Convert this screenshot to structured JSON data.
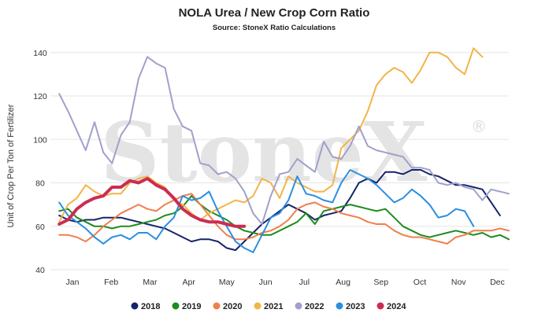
{
  "chart_data": {
    "type": "line",
    "title": "NOLA Urea / New Crop Corn Ratio",
    "subtitle": "Source: StoneX Ratio Calculations",
    "watermark": "StoneX",
    "watermark_mark": "®",
    "xlabel": "",
    "ylabel": "Unit of Crop Per Ton of Fertilizer",
    "ylim": [
      40,
      145
    ],
    "yticks": [
      40,
      60,
      80,
      100,
      120,
      140
    ],
    "xlim": [
      0,
      52
    ],
    "month_ticks": [
      {
        "label": "Jan",
        "week": 2.5
      },
      {
        "label": "Feb",
        "week": 6.9
      },
      {
        "label": "Mar",
        "week": 11.3
      },
      {
        "label": "Apr",
        "week": 15.7
      },
      {
        "label": "May",
        "week": 20.0
      },
      {
        "label": "Jun",
        "week": 24.4
      },
      {
        "label": "Jul",
        "week": 28.8
      },
      {
        "label": "Aug",
        "week": 33.2
      },
      {
        "label": "Sep",
        "week": 37.5
      },
      {
        "label": "Oct",
        "week": 41.9
      },
      {
        "label": "Nov",
        "week": 46.3
      },
      {
        "label": "Dec",
        "week": 50.7
      }
    ],
    "grid": "horizontal",
    "legend": "bottom",
    "series": [
      {
        "name": "2018",
        "color": "#14246b",
        "width": 2,
        "values": [
          65,
          63,
          62,
          63,
          63,
          64,
          64,
          64,
          63,
          62,
          61,
          60,
          59,
          57,
          55,
          53,
          54,
          54,
          53,
          50,
          49,
          53,
          57,
          61,
          64,
          67,
          70,
          68,
          66,
          63,
          65,
          66,
          67,
          73,
          80,
          82,
          80,
          85,
          85,
          84,
          86,
          86,
          84,
          83,
          81,
          79,
          79,
          78,
          77,
          71,
          65
        ]
      },
      {
        "name": "2019",
        "color": "#1e8c1e",
        "width": 2,
        "values": [
          67,
          68,
          64,
          62,
          60,
          60,
          59,
          60,
          60,
          61,
          62,
          63,
          65,
          66,
          69,
          74,
          70,
          67,
          65,
          63,
          60,
          58,
          57,
          56,
          56,
          58,
          60,
          62,
          66,
          61,
          67,
          68,
          69,
          70,
          69,
          68,
          67,
          68,
          64,
          60,
          58,
          56,
          55,
          56,
          57,
          58,
          57,
          56,
          57,
          55,
          56,
          54
        ]
      },
      {
        "name": "2020",
        "color": "#ef7f4d",
        "width": 2,
        "values": [
          56,
          56,
          55,
          53,
          56,
          60,
          63,
          66,
          68,
          70,
          68,
          67,
          70,
          72,
          74,
          75,
          70,
          65,
          60,
          56,
          54,
          54,
          55,
          57,
          58,
          60,
          63,
          68,
          70,
          71,
          69,
          68,
          66,
          65,
          64,
          62,
          61,
          61,
          58,
          56,
          55,
          55,
          54,
          53,
          52,
          55,
          56,
          58,
          58,
          58,
          59,
          58
        ]
      },
      {
        "name": "2021",
        "color": "#f2b446",
        "width": 2,
        "values": [
          62,
          70,
          73,
          79,
          76,
          74,
          75,
          75,
          80,
          82,
          83,
          80,
          78,
          72,
          70,
          66,
          63,
          66,
          68,
          70,
          72,
          71,
          74,
          82,
          80,
          73,
          83,
          80,
          78,
          76,
          76,
          79,
          96,
          100,
          104,
          113,
          125,
          130,
          133,
          131,
          126,
          132,
          140,
          140,
          138,
          133,
          130,
          142,
          138
        ]
      },
      {
        "name": "2022",
        "color": "#a0a0cc",
        "width": 2,
        "values": [
          121,
          113,
          104,
          95,
          108,
          94,
          89,
          102,
          108,
          128,
          138,
          135,
          133,
          114,
          106,
          104,
          89,
          88,
          84,
          85,
          82,
          76,
          66,
          61,
          74,
          84,
          85,
          91,
          88,
          85,
          99,
          92,
          91,
          97,
          106,
          97,
          95,
          94,
          93,
          92,
          87,
          87,
          86,
          80,
          79,
          80,
          78,
          77,
          72,
          77,
          76,
          75
        ]
      },
      {
        "name": "2023",
        "color": "#2a8fe0",
        "width": 2,
        "values": [
          71,
          65,
          62,
          59,
          55,
          52,
          55,
          56,
          54,
          57,
          57,
          54,
          60,
          64,
          74,
          72,
          73,
          76,
          67,
          60,
          53,
          50,
          48,
          56,
          64,
          66,
          72,
          83,
          75,
          74,
          72,
          71,
          80,
          86,
          84,
          82,
          79,
          75,
          71,
          73,
          77,
          74,
          70,
          64,
          65,
          68,
          67,
          60
        ]
      },
      {
        "name": "2024",
        "color": "#cc2c52",
        "width": 4,
        "values": [
          61,
          63,
          68,
          71,
          73,
          74,
          78,
          78,
          81,
          80,
          82,
          79,
          77,
          73,
          68,
          65,
          63,
          62,
          62,
          61,
          60,
          60
        ]
      }
    ]
  }
}
